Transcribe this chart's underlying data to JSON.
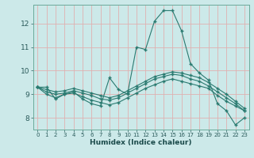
{
  "xlabel": "Humidex (Indice chaleur)",
  "background_color": "#cce9e9",
  "line_color": "#2a7a70",
  "grid_color": "#e0b0b0",
  "ylim": [
    7.5,
    12.8
  ],
  "xlim": [
    -0.5,
    23.5
  ],
  "yticks": [
    8,
    9,
    10,
    11,
    12
  ],
  "xticks": [
    0,
    1,
    2,
    3,
    4,
    5,
    6,
    7,
    8,
    9,
    10,
    11,
    12,
    13,
    14,
    15,
    16,
    17,
    18,
    19,
    20,
    21,
    22,
    23
  ],
  "lines": [
    {
      "x": [
        0,
        1,
        2,
        3,
        4,
        5,
        6,
        7,
        8,
        9,
        10,
        11,
        12,
        13,
        14,
        15,
        16,
        17,
        18,
        19,
        20,
        21,
        22,
        23
      ],
      "y": [
        9.3,
        9.3,
        8.8,
        9.0,
        9.1,
        8.8,
        8.6,
        8.5,
        9.7,
        9.2,
        9.0,
        11.0,
        10.9,
        12.1,
        12.55,
        12.55,
        11.7,
        10.3,
        9.9,
        9.6,
        8.6,
        8.3,
        7.7,
        8.0
      ]
    },
    {
      "x": [
        0,
        1,
        2,
        3,
        4,
        5,
        6,
        7,
        8,
        9,
        10,
        11,
        12,
        13,
        14,
        15,
        16,
        17,
        18,
        19,
        20,
        21,
        22,
        23
      ],
      "y": [
        9.3,
        9.0,
        8.85,
        9.0,
        9.05,
        8.9,
        8.75,
        8.65,
        8.55,
        8.65,
        8.85,
        9.05,
        9.25,
        9.4,
        9.55,
        9.65,
        9.55,
        9.45,
        9.35,
        9.25,
        8.95,
        8.7,
        8.5,
        8.3
      ]
    },
    {
      "x": [
        0,
        1,
        2,
        3,
        4,
        5,
        6,
        7,
        8,
        9,
        10,
        11,
        12,
        13,
        14,
        15,
        16,
        17,
        18,
        19,
        20,
        21,
        22,
        23
      ],
      "y": [
        9.3,
        9.1,
        9.0,
        9.05,
        9.15,
        9.05,
        8.95,
        8.8,
        8.75,
        8.85,
        9.05,
        9.25,
        9.45,
        9.65,
        9.75,
        9.85,
        9.8,
        9.65,
        9.55,
        9.35,
        9.1,
        8.85,
        8.6,
        8.3
      ]
    },
    {
      "x": [
        0,
        1,
        2,
        3,
        4,
        5,
        6,
        7,
        8,
        9,
        10,
        11,
        12,
        13,
        14,
        15,
        16,
        17,
        18,
        19,
        20,
        21,
        22,
        23
      ],
      "y": [
        9.3,
        9.2,
        9.1,
        9.15,
        9.25,
        9.15,
        9.05,
        8.95,
        8.85,
        8.95,
        9.15,
        9.35,
        9.55,
        9.75,
        9.85,
        9.95,
        9.9,
        9.8,
        9.7,
        9.5,
        9.25,
        9.0,
        8.7,
        8.4
      ]
    }
  ]
}
